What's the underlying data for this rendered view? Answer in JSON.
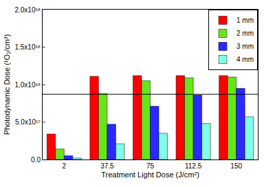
{
  "chart_data": {
    "type": "bar",
    "x_label": "Treatment Light Dose (J/cm²)",
    "y_label": "Photodynamic Dose (¹O₂/cm³)",
    "categories": [
      "2",
      "37.5",
      "75",
      "112.5",
      "150"
    ],
    "series": [
      {
        "name": "1 mm",
        "color": "#ff0000",
        "values": [
          3.4e+17,
          1.11e+18,
          1.12e+18,
          1.12e+18,
          1.12e+18
        ]
      },
      {
        "name": "2 mm",
        "color": "#66e61a",
        "values": [
          1.4e+17,
          8.8e+17,
          1.05e+18,
          1.09e+18,
          1.1e+18
        ]
      },
      {
        "name": "3 mm",
        "color": "#2a2aff",
        "values": [
          5e+16,
          4.7e+17,
          7.1e+17,
          8.6e+17,
          9.5e+17
        ]
      },
      {
        "name": "4 mm",
        "color": "#80ffe6",
        "values": [
          2e+16,
          2.1e+17,
          3.5e+17,
          4.8e+17,
          5.7e+17
        ]
      }
    ],
    "reference_line": 8.7e+17,
    "ylim": [
      0,
      2e+18
    ],
    "yticks": [
      {
        "value": 0,
        "label": "0.0"
      },
      {
        "value": 5e+17,
        "label": "5.0x10¹⁷"
      },
      {
        "value": 1e+18,
        "label": "1.0x10¹⁸"
      },
      {
        "value": 1.5e+18,
        "label": "1.5x10¹⁸"
      },
      {
        "value": 2e+18,
        "label": "2.0x10¹⁸"
      }
    ],
    "grid": false,
    "legend": "top right"
  }
}
